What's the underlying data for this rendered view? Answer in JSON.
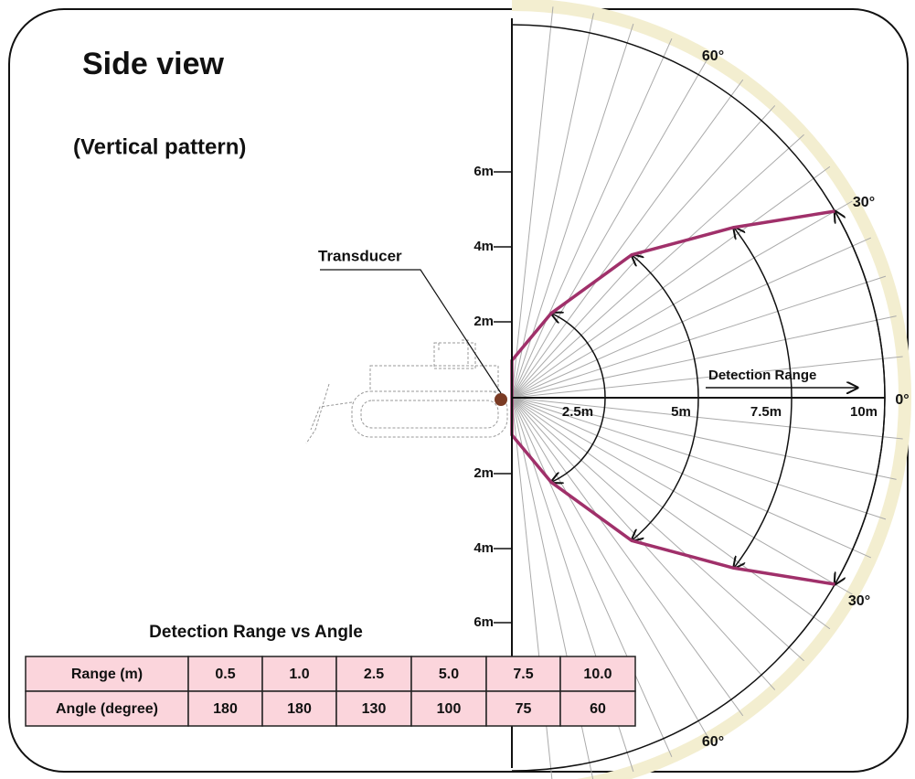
{
  "title": "Side view",
  "subtitle": "(Vertical pattern)",
  "transducer_label": "Transducer",
  "range_label": "Detection Range",
  "y_axis_labels": [
    "6m",
    "4m",
    "2m",
    "2m",
    "4m",
    "6m"
  ],
  "x_axis_labels": [
    "2.5m",
    "5m",
    "7.5m",
    "10m"
  ],
  "angle_labels": [
    "60°",
    "30°",
    "0°",
    "30°",
    "60°"
  ],
  "table": {
    "title": "Detection Range vs Angle",
    "rows": [
      [
        "Range (m)",
        "0.5",
        "1.0",
        "2.5",
        "5.0",
        "7.5",
        "10.0"
      ],
      [
        "Angle (degree)",
        "180",
        "180",
        "130",
        "100",
        "75",
        "60"
      ]
    ]
  }
}
